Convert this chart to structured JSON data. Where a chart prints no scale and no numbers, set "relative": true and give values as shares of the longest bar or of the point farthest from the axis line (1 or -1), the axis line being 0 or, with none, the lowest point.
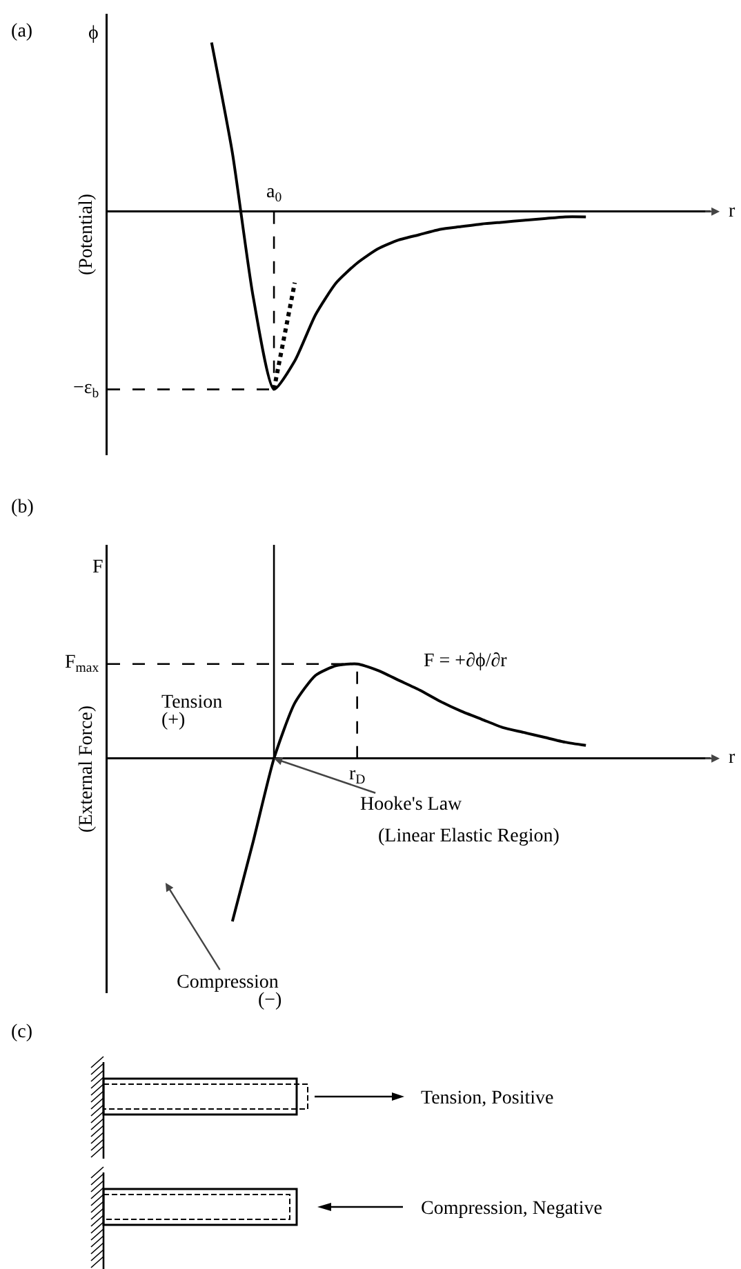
{
  "chart_data": [
    {
      "type": "line",
      "title": "(a)",
      "ylabel": "(Potential)",
      "relative": true,
      "categories": [
        null,
        null,
        null,
        null,
        null,
        null,
        null,
        null,
        null,
        null,
        null,
        null,
        null,
        null,
        null,
        null,
        null,
        null,
        null,
        null,
        null,
        null,
        null,
        null,
        null,
        null,
        null,
        null,
        null,
        null
      ],
      "series": [
        {
          "color": "#000000",
          "line_style": "solid",
          "values": [
            null,
            null,
            null,
            null,
            null,
            0.95,
            0.33,
            -0.48,
            -1,
            -0.84,
            -0.58,
            -0.4,
            -0.29,
            -0.21,
            -0.16,
            -0.13,
            -0.1,
            -0.085,
            -0.07,
            -0.06,
            -0.05,
            -0.04,
            -0.03,
            -0.03,
            null,
            null,
            null,
            null,
            null,
            null
          ]
        },
        {
          "color": "#000000",
          "line_style": "dotted",
          "values": [
            null,
            null,
            null,
            null,
            null,
            null,
            null,
            null,
            -1,
            -0.4,
            null,
            null,
            null,
            null,
            null,
            null,
            null,
            null,
            null,
            null,
            null,
            null,
            null,
            null,
            null,
            null,
            null,
            null,
            null,
            null
          ]
        }
      ],
      "ref_lines": [
        {
          "axis": "y",
          "value": -1,
          "label": "−ε$_{b}$",
          "line_style": "dashed"
        }
      ],
      "annotations": [
        "ϕ",
        "r",
        "a$_{0}$"
      ]
    },
    {
      "type": "line",
      "title": "(b)",
      "ylabel": "(External Force)",
      "relative": true,
      "categories": [
        null,
        null,
        null,
        null,
        null,
        null,
        null,
        null,
        null,
        null,
        null,
        null,
        null,
        null,
        null,
        null,
        null,
        null,
        null,
        null,
        null,
        null,
        null,
        null,
        null,
        null,
        null,
        null,
        null,
        null
      ],
      "series": [
        {
          "color": "#000000",
          "line_style": "solid",
          "values": [
            null,
            null,
            null,
            null,
            null,
            null,
            -1,
            -0.51,
            0,
            0.34,
            0.51,
            0.57,
            0.58,
            0.54,
            0.48,
            0.42,
            0.35,
            0.29,
            0.24,
            0.19,
            0.16,
            0.13,
            0.1,
            0.08,
            null,
            null,
            null,
            null,
            null,
            null
          ]
        }
      ],
      "ref_lines": [
        {
          "axis": "y",
          "value": 0.58,
          "label": "F$_{max}$",
          "line_style": "dashed"
        }
      ],
      "annotations": [
        "F",
        "r",
        "F = +∂ϕ/∂r",
        "Tension",
        "(+)",
        "Hooke's Law",
        "(Linear Elastic Region)",
        "Compression",
        "(−)",
        "r$_{D}$"
      ]
    },
    {
      "type": "other",
      "title": "(c)",
      "annotations": [
        "Tension, Positive",
        "Compression, Negative"
      ]
    }
  ]
}
